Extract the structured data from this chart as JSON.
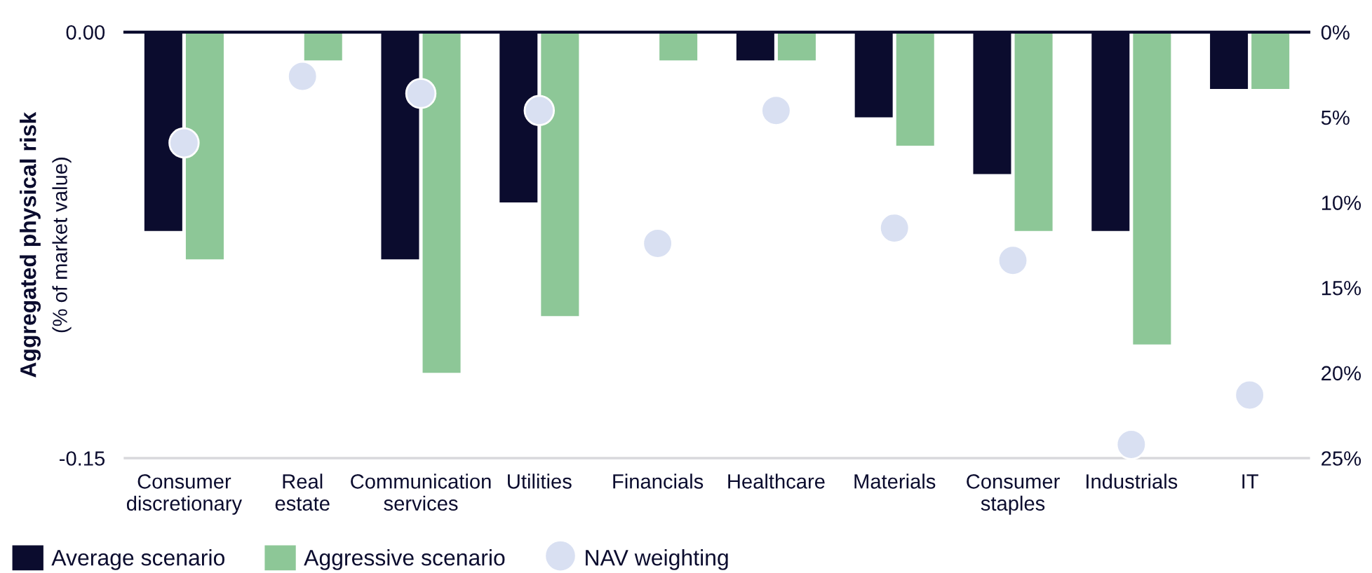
{
  "chart_data": {
    "type": "bar",
    "ylabel": "Aggregated physical risk\n(% of market value)",
    "categories": [
      "Consumer\ndiscretionary",
      "Real\nestate",
      "Communication\nservices",
      "Utilities",
      "Financials",
      "Healthcare",
      "Materials",
      "Consumer\nstaples",
      "Industrials",
      "IT"
    ],
    "series": [
      {
        "name": "Average scenario",
        "color": "#0b0c2e",
        "values": [
          -0.07,
          0,
          -0.08,
          -0.06,
          0,
          -0.01,
          -0.03,
          -0.05,
          -0.07,
          -0.02
        ]
      },
      {
        "name": "Aggressive scenario",
        "color": "#8dc797",
        "values": [
          -0.08,
          -0.01,
          -0.12,
          -0.1,
          -0.01,
          -0.01,
          -0.04,
          -0.07,
          -0.11,
          -0.02
        ]
      },
      {
        "name": "NAV weighting",
        "type": "scatter",
        "axis": "y2",
        "marker": "circle",
        "color": "#d9e0f2",
        "values": [
          6.5,
          2.6,
          3.6,
          4.6,
          12.4,
          4.6,
          11.5,
          13.4,
          24.2,
          21.3
        ]
      }
    ],
    "ylim": [
      -0.15,
      0
    ],
    "yticks": [
      {
        "value": -0.15,
        "label": "-0.15"
      },
      {
        "value": 0,
        "label": "0.00"
      }
    ],
    "y2lim": [
      25,
      0
    ],
    "y2ticks": [
      {
        "value": 0,
        "label": "0%"
      },
      {
        "value": 5,
        "label": "5%"
      },
      {
        "value": 10,
        "label": "10%"
      },
      {
        "value": 15,
        "label": "15%"
      },
      {
        "value": 20,
        "label": "20%"
      },
      {
        "value": 25,
        "label": "25%"
      }
    ],
    "legend": "bottom left"
  }
}
